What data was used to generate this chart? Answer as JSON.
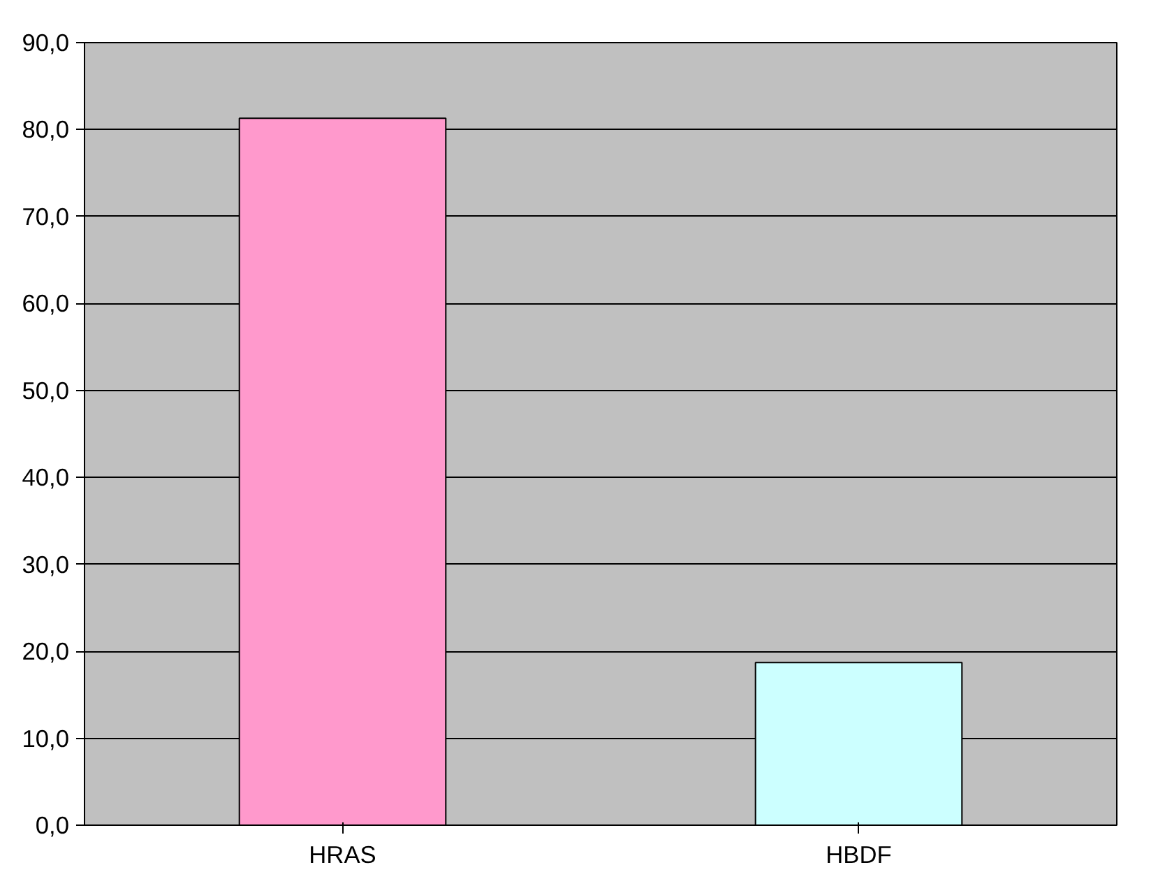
{
  "chart_data": {
    "type": "bar",
    "categories": [
      "HRAS",
      "HBDF"
    ],
    "values": [
      81.3,
      18.7
    ],
    "colors": [
      "#ff99cc",
      "#ccffff"
    ],
    "ylim": [
      0,
      90
    ],
    "yticks": [
      {
        "value": 0,
        "label": "0,0"
      },
      {
        "value": 10,
        "label": "10,0"
      },
      {
        "value": 20,
        "label": "20,0"
      },
      {
        "value": 30,
        "label": "30,0"
      },
      {
        "value": 40,
        "label": "40,0"
      },
      {
        "value": 50,
        "label": "50,0"
      },
      {
        "value": 60,
        "label": "60,0"
      },
      {
        "value": 70,
        "label": "70,0"
      },
      {
        "value": 80,
        "label": "80,0"
      },
      {
        "value": 90,
        "label": "90,0"
      }
    ],
    "grid": "y"
  }
}
